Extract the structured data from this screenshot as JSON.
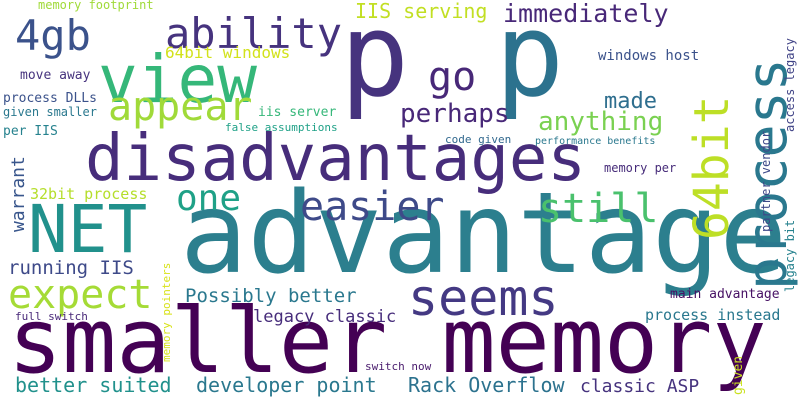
{
  "words": [
    "p",
    "p",
    "advantage",
    "smaller memory",
    "disadvantages",
    "NET",
    "view",
    "ability",
    "4gb",
    "appear",
    "go",
    "one",
    "easier",
    "still",
    "expect",
    "seems",
    "perhaps",
    "anything",
    "made",
    "immediately",
    "IIS serving",
    "memory footprint",
    "64bit windows",
    "move away",
    "process DLLs",
    "given smaller",
    "per IIS",
    "iis server",
    "false assumptions",
    "code given",
    "performance benefits",
    "memory per",
    "windows host",
    "32bit process",
    "running IIS",
    "Possibly better",
    "legacy classic",
    "main advantage",
    "process instead",
    "full switch",
    "switch now",
    "better suited",
    "developer point",
    "Rack Overflow",
    "classic ASP",
    "64bit",
    "process",
    "warrant",
    "access legacy",
    "partner vendor",
    "legacy bit",
    "memory pointers",
    "given"
  ]
}
